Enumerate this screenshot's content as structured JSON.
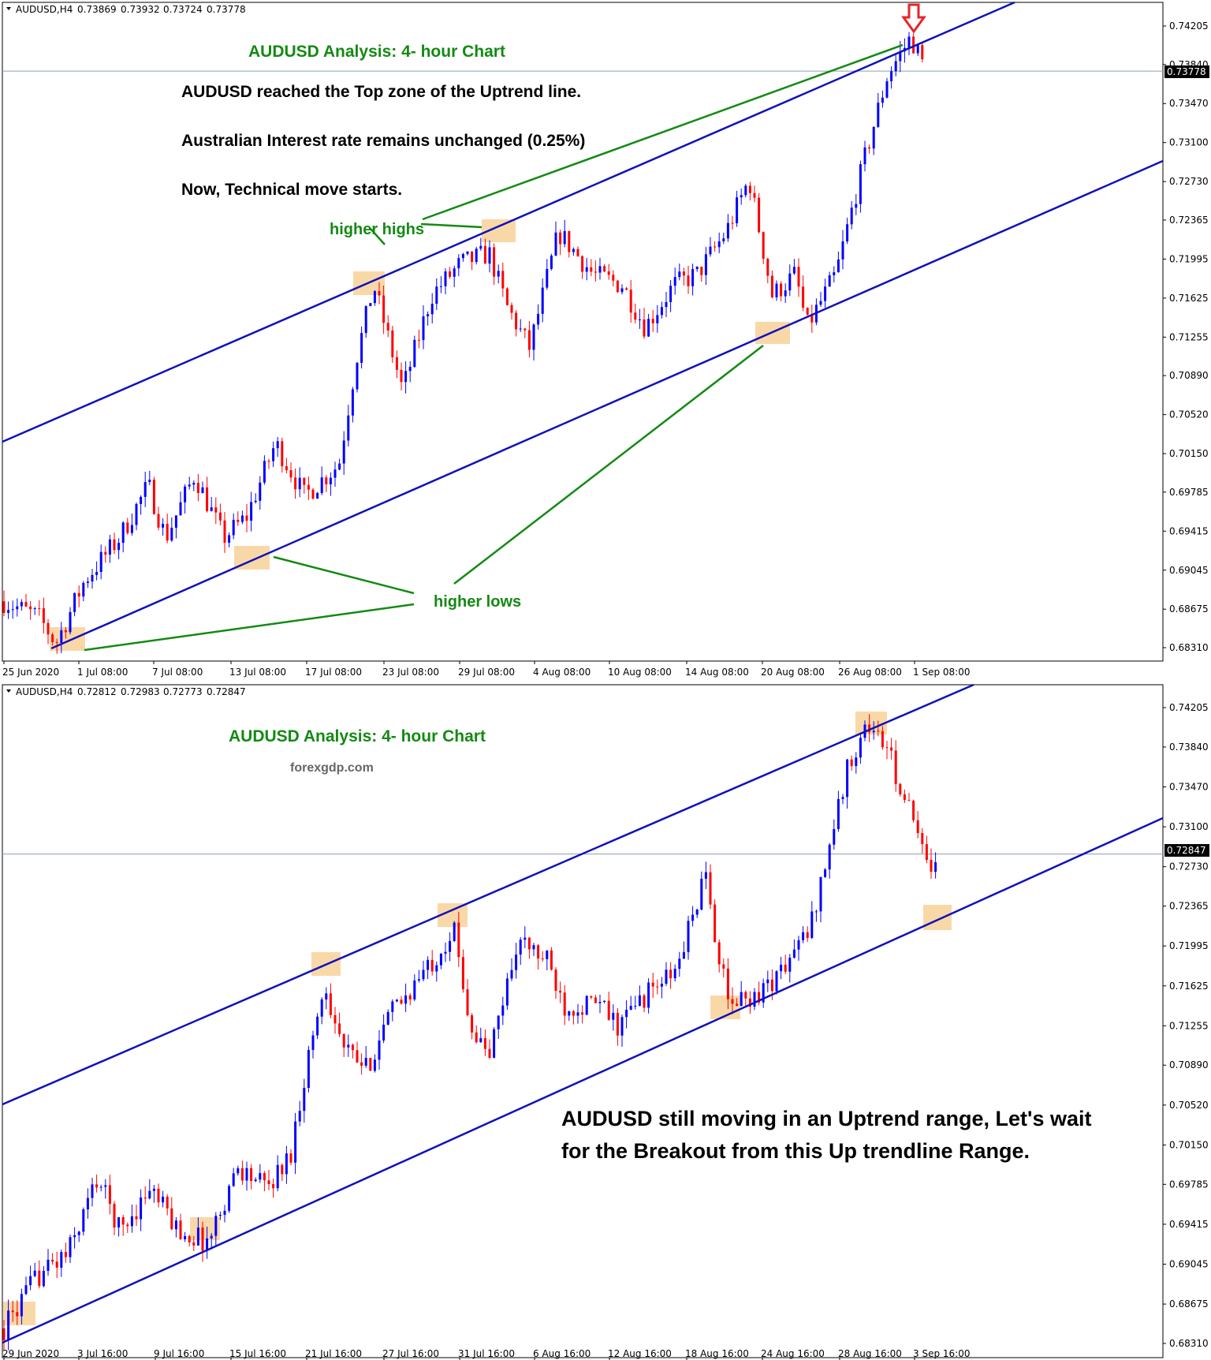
{
  "chart_data": [
    {
      "type": "candlestick",
      "symbol_header": "AUDUSD,H4",
      "ohlc_header": [
        "0.73869",
        "0.73932",
        "0.73724",
        "0.73778"
      ],
      "title": "AUDUSD Analysis: 4- hour Chart",
      "notes": [
        "AUDUSD reached the Top zone of the Uptrend line.",
        "Australian Interest rate remains unchanged (0.25%)",
        "Now, Technical move starts."
      ],
      "higher_highs_label": "higher highs",
      "higher_lows_label": "higher lows",
      "current_price": "0.73778",
      "current_price_value": 0.73778,
      "ylim": [
        0.6815,
        0.7435
      ],
      "y_ticks": [
        "0.74205",
        "0.73840",
        "0.73470",
        "0.73100",
        "0.72730",
        "0.72365",
        "0.71995",
        "0.71625",
        "0.71255",
        "0.70890",
        "0.70520",
        "0.70150",
        "0.69785",
        "0.69415",
        "0.69045",
        "0.68675",
        "0.68310"
      ],
      "x_ticks": [
        "25 Jun 2020",
        "1 Jul 08:00",
        "7 Jul 08:00",
        "13 Jul 08:00",
        "17 Jul 08:00",
        "23 Jul 08:00",
        "29 Jul 08:00",
        "4 Aug 08:00",
        "10 Aug 08:00",
        "14 Aug 08:00",
        "20 Aug 08:00",
        "26 Aug 08:00",
        "1 Sep 08:00"
      ],
      "price_path": [
        [
          0,
          0.6875
        ],
        [
          0.03,
          0.686
        ],
        [
          0.045,
          0.6835
        ],
        [
          0.07,
          0.6895
        ],
        [
          0.1,
          0.6935
        ],
        [
          0.125,
          0.6985
        ],
        [
          0.14,
          0.6935
        ],
        [
          0.165,
          0.6995
        ],
        [
          0.19,
          0.6935
        ],
        [
          0.21,
          0.6955
        ],
        [
          0.235,
          0.7025
        ],
        [
          0.26,
          0.6975
        ],
        [
          0.29,
          0.7005
        ],
        [
          0.305,
          0.7105
        ],
        [
          0.32,
          0.7175
        ],
        [
          0.345,
          0.7075
        ],
        [
          0.37,
          0.7165
        ],
        [
          0.395,
          0.7195
        ],
        [
          0.42,
          0.7205
        ],
        [
          0.435,
          0.7155
        ],
        [
          0.455,
          0.7115
        ],
        [
          0.48,
          0.7225
        ],
        [
          0.51,
          0.7185
        ],
        [
          0.535,
          0.7175
        ],
        [
          0.555,
          0.7135
        ],
        [
          0.58,
          0.7175
        ],
        [
          0.6,
          0.7185
        ],
        [
          0.625,
          0.7225
        ],
        [
          0.645,
          0.7275
        ],
        [
          0.665,
          0.7165
        ],
        [
          0.685,
          0.7185
        ],
        [
          0.695,
          0.7135
        ],
        [
          0.72,
          0.7185
        ],
        [
          0.745,
          0.7295
        ],
        [
          0.765,
          0.7375
        ],
        [
          0.785,
          0.741
        ],
        [
          0.795,
          0.7385
        ]
      ]
    },
    {
      "type": "candlestick",
      "symbol_header": "AUDUSD,H4",
      "ohlc_header": [
        "0.72812",
        "0.72983",
        "0.72773",
        "0.72847"
      ],
      "title": "AUDUSD Analysis: 4- hour Chart",
      "subtitle": "forexgdp.com",
      "notes": [
        "AUDUSD still moving in an Uptrend range, Let's wait",
        "for the Breakout from this Up trendline Range."
      ],
      "current_price": "0.72847",
      "current_price_value": 0.72847,
      "ylim": [
        0.6815,
        0.7435
      ],
      "y_ticks": [
        "0.74205",
        "0.73840",
        "0.73470",
        "0.73100",
        "0.72730",
        "0.72365",
        "0.71995",
        "0.71625",
        "0.71255",
        "0.70890",
        "0.70520",
        "0.70150",
        "0.69785",
        "0.69415",
        "0.69045",
        "0.68675",
        "0.68310"
      ],
      "x_ticks": [
        "29 Jun 2020",
        "3 Jul 16:00",
        "9 Jul 16:00",
        "15 Jul 16:00",
        "21 Jul 16:00",
        "27 Jul 16:00",
        "31 Jul 16:00",
        "6 Aug 16:00",
        "12 Aug 16:00",
        "18 Aug 16:00",
        "24 Aug 16:00",
        "28 Aug 16:00",
        "3 Sep 16:00"
      ],
      "price_path": [
        [
          0,
          0.6845
        ],
        [
          0.03,
          0.6895
        ],
        [
          0.055,
          0.6915
        ],
        [
          0.08,
          0.6985
        ],
        [
          0.1,
          0.6935
        ],
        [
          0.125,
          0.6975
        ],
        [
          0.15,
          0.6935
        ],
        [
          0.175,
          0.6925
        ],
        [
          0.2,
          0.6995
        ],
        [
          0.225,
          0.6975
        ],
        [
          0.245,
          0.7005
        ],
        [
          0.26,
          0.7095
        ],
        [
          0.275,
          0.7165
        ],
        [
          0.29,
          0.7105
        ],
        [
          0.31,
          0.7085
        ],
        [
          0.33,
          0.7135
        ],
        [
          0.36,
          0.7175
        ],
        [
          0.385,
          0.7215
        ],
        [
          0.4,
          0.7125
        ],
        [
          0.415,
          0.7095
        ],
        [
          0.44,
          0.7205
        ],
        [
          0.465,
          0.7185
        ],
        [
          0.48,
          0.7145
        ],
        [
          0.51,
          0.7145
        ],
        [
          0.525,
          0.7125
        ],
        [
          0.55,
          0.7155
        ],
        [
          0.575,
          0.7175
        ],
        [
          0.6,
          0.7265
        ],
        [
          0.62,
          0.7145
        ],
        [
          0.645,
          0.7155
        ],
        [
          0.665,
          0.7175
        ],
        [
          0.69,
          0.7215
        ],
        [
          0.705,
          0.7285
        ],
        [
          0.725,
          0.7375
        ],
        [
          0.74,
          0.7405
        ],
        [
          0.755,
          0.7385
        ],
        [
          0.775,
          0.7325
        ],
        [
          0.79,
          0.7275
        ],
        [
          0.8,
          0.7285
        ]
      ]
    }
  ],
  "colors": {
    "bull": "#0000ff",
    "bear": "#ff0000",
    "trendline": "#1111bb",
    "green_line": "#138a13",
    "highlight": "#f9d8a8",
    "arrow": "#e3262a"
  }
}
